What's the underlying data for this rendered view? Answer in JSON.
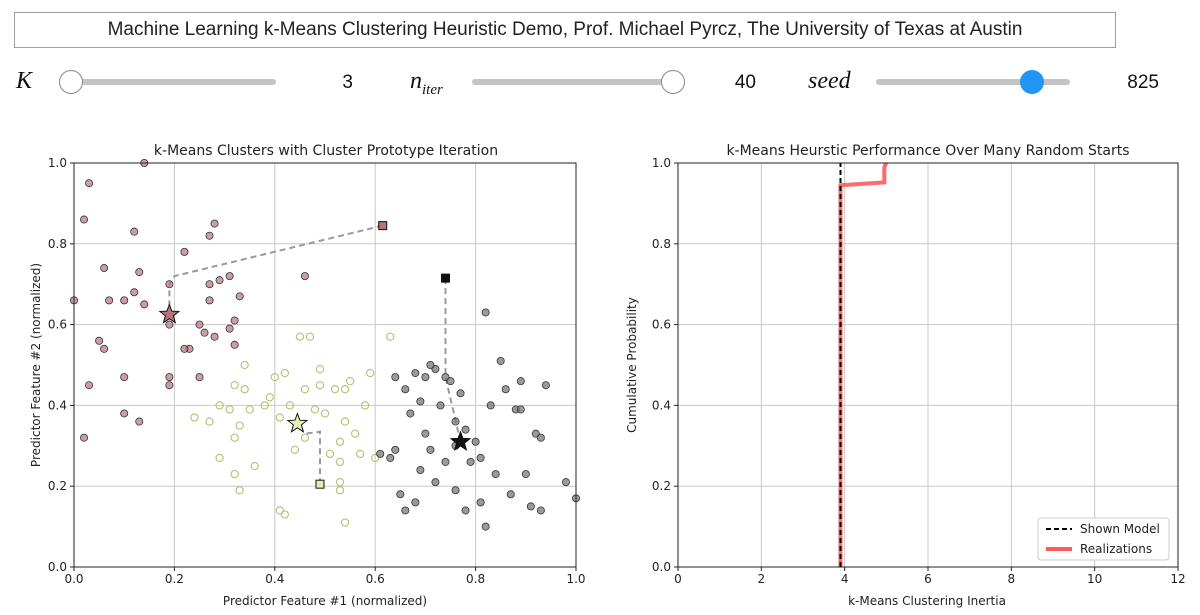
{
  "header": {
    "title": "Machine Learning k-Means Clustering Heuristic Demo, Prof. Michael Pyrcz, The University of Texas at Austin"
  },
  "sliders": [
    {
      "name": "K",
      "label_main": "K",
      "label_sub": "",
      "value": "3",
      "fraction": 0.0,
      "style": "light"
    },
    {
      "name": "n_iter",
      "label_main": "n",
      "label_sub": "iter",
      "value": "40",
      "fraction": 1.0,
      "style": "light"
    },
    {
      "name": "seed",
      "label_main": "seed",
      "label_sub": "",
      "value": "825",
      "fraction": 0.8,
      "style": "active"
    }
  ],
  "colors": {
    "cluster_red": "#b5737e",
    "cluster_yellow": "#e8ecb0",
    "cluster_gray": "#6f6f6f",
    "trace": "#999999",
    "realizations": "#ff5a5a",
    "shown_model": "#000000",
    "grid": "#c8c8c8"
  },
  "chart_data": [
    {
      "type": "scatter",
      "title": "k-Means Clusters with Cluster Prototype Iteration",
      "xlabel": "Predictor Feature #1 (normalized)",
      "ylabel": "Predictor Feature #2 (normalized)",
      "xlim": [
        0,
        1
      ],
      "ylim": [
        0,
        1
      ],
      "xticks": [
        "0.0",
        "0.2",
        "0.4",
        "0.6",
        "0.8",
        "1.0"
      ],
      "yticks": [
        "0.0",
        "0.2",
        "0.4",
        "0.6",
        "0.8",
        "1.0"
      ],
      "grid": true,
      "series": [
        {
          "cluster": 1,
          "color": "#b5737e",
          "filled": true,
          "points": [
            [
              0.0,
              0.66
            ],
            [
              0.02,
              0.86
            ],
            [
              0.03,
              0.95
            ],
            [
              0.06,
              0.74
            ],
            [
              0.07,
              0.66
            ],
            [
              0.06,
              0.54
            ],
            [
              0.05,
              0.56
            ],
            [
              0.03,
              0.45
            ],
            [
              0.02,
              0.32
            ],
            [
              0.1,
              0.66
            ],
            [
              0.12,
              0.83
            ],
            [
              0.12,
              0.68
            ],
            [
              0.13,
              0.73
            ],
            [
              0.14,
              0.65
            ],
            [
              0.1,
              0.47
            ],
            [
              0.1,
              0.38
            ],
            [
              0.13,
              0.36
            ],
            [
              0.19,
              0.45
            ],
            [
              0.19,
              0.47
            ],
            [
              0.19,
              0.6
            ],
            [
              0.19,
              0.7
            ],
            [
              0.22,
              0.78
            ],
            [
              0.23,
              0.54
            ],
            [
              0.22,
              0.54
            ],
            [
              0.25,
              0.6
            ],
            [
              0.26,
              0.58
            ],
            [
              0.27,
              0.66
            ],
            [
              0.27,
              0.7
            ],
            [
              0.27,
              0.82
            ],
            [
              0.28,
              0.85
            ],
            [
              0.29,
              0.71
            ],
            [
              0.31,
              0.72
            ],
            [
              0.32,
              0.61
            ],
            [
              0.31,
              0.59
            ],
            [
              0.33,
              0.67
            ],
            [
              0.32,
              0.55
            ],
            [
              0.28,
              0.57
            ],
            [
              0.46,
              0.72
            ],
            [
              0.25,
              0.47
            ],
            [
              0.14,
              1.0
            ]
          ]
        },
        {
          "cluster": 2,
          "color": "#e8ecb0",
          "filled": false,
          "points": [
            [
              0.24,
              0.37
            ],
            [
              0.27,
              0.36
            ],
            [
              0.29,
              0.4
            ],
            [
              0.29,
              0.27
            ],
            [
              0.31,
              0.39
            ],
            [
              0.32,
              0.32
            ],
            [
              0.32,
              0.23
            ],
            [
              0.33,
              0.35
            ],
            [
              0.33,
              0.19
            ],
            [
              0.34,
              0.44
            ],
            [
              0.34,
              0.5
            ],
            [
              0.35,
              0.39
            ],
            [
              0.36,
              0.25
            ],
            [
              0.38,
              0.4
            ],
            [
              0.39,
              0.42
            ],
            [
              0.4,
              0.47
            ],
            [
              0.41,
              0.37
            ],
            [
              0.41,
              0.14
            ],
            [
              0.42,
              0.13
            ],
            [
              0.42,
              0.48
            ],
            [
              0.43,
              0.4
            ],
            [
              0.44,
              0.29
            ],
            [
              0.45,
              0.57
            ],
            [
              0.46,
              0.32
            ],
            [
              0.46,
              0.44
            ],
            [
              0.47,
              0.57
            ],
            [
              0.48,
              0.39
            ],
            [
              0.49,
              0.45
            ],
            [
              0.49,
              0.49
            ],
            [
              0.5,
              0.38
            ],
            [
              0.51,
              0.28
            ],
            [
              0.52,
              0.44
            ],
            [
              0.53,
              0.31
            ],
            [
              0.53,
              0.26
            ],
            [
              0.53,
              0.21
            ],
            [
              0.53,
              0.19
            ],
            [
              0.54,
              0.44
            ],
            [
              0.54,
              0.36
            ],
            [
              0.54,
              0.11
            ],
            [
              0.55,
              0.46
            ],
            [
              0.56,
              0.33
            ],
            [
              0.57,
              0.28
            ],
            [
              0.58,
              0.4
            ],
            [
              0.59,
              0.48
            ],
            [
              0.6,
              0.27
            ],
            [
              0.63,
              0.57
            ],
            [
              0.32,
              0.45
            ]
          ]
        },
        {
          "cluster": 3,
          "color": "#6f6f6f",
          "filled": true,
          "points": [
            [
              0.61,
              0.28
            ],
            [
              0.63,
              0.27
            ],
            [
              0.64,
              0.47
            ],
            [
              0.64,
              0.29
            ],
            [
              0.65,
              0.18
            ],
            [
              0.66,
              0.44
            ],
            [
              0.66,
              0.14
            ],
            [
              0.67,
              0.38
            ],
            [
              0.68,
              0.16
            ],
            [
              0.68,
              0.48
            ],
            [
              0.69,
              0.24
            ],
            [
              0.69,
              0.41
            ],
            [
              0.7,
              0.47
            ],
            [
              0.7,
              0.33
            ],
            [
              0.71,
              0.29
            ],
            [
              0.72,
              0.49
            ],
            [
              0.72,
              0.21
            ],
            [
              0.73,
              0.4
            ],
            [
              0.74,
              0.47
            ],
            [
              0.74,
              0.26
            ],
            [
              0.75,
              0.46
            ],
            [
              0.76,
              0.19
            ],
            [
              0.76,
              0.36
            ],
            [
              0.77,
              0.43
            ],
            [
              0.78,
              0.34
            ],
            [
              0.78,
              0.14
            ],
            [
              0.79,
              0.26
            ],
            [
              0.8,
              0.31
            ],
            [
              0.81,
              0.27
            ],
            [
              0.81,
              0.16
            ],
            [
              0.82,
              0.1
            ],
            [
              0.82,
              0.63
            ],
            [
              0.83,
              0.4
            ],
            [
              0.84,
              0.23
            ],
            [
              0.85,
              0.51
            ],
            [
              0.86,
              0.44
            ],
            [
              0.87,
              0.18
            ],
            [
              0.88,
              0.39
            ],
            [
              0.89,
              0.46
            ],
            [
              0.89,
              0.39
            ],
            [
              0.9,
              0.23
            ],
            [
              0.91,
              0.15
            ],
            [
              0.92,
              0.33
            ],
            [
              0.93,
              0.32
            ],
            [
              0.93,
              0.14
            ],
            [
              0.94,
              0.45
            ],
            [
              0.98,
              0.21
            ],
            [
              1.0,
              0.17
            ],
            [
              0.76,
              0.3
            ],
            [
              0.71,
              0.5
            ]
          ]
        }
      ],
      "prototype_traces": [
        {
          "cluster": 1,
          "color": "#b5737e",
          "path": [
            [
              0.615,
              0.845
            ],
            [
              0.2,
              0.72
            ],
            [
              0.19,
              0.7
            ],
            [
              0.19,
              0.625
            ]
          ],
          "start": [
            0.615,
            0.845
          ],
          "final": [
            0.19,
            0.625
          ]
        },
        {
          "cluster": 2,
          "color": "#e8ecb0",
          "path": [
            [
              0.49,
              0.205
            ],
            [
              0.49,
              0.335
            ],
            [
              0.46,
              0.33
            ],
            [
              0.445,
              0.355
            ]
          ],
          "start": [
            0.49,
            0.205
          ],
          "final": [
            0.445,
            0.355
          ]
        },
        {
          "cluster": 3,
          "color": "#111111",
          "path": [
            [
              0.74,
              0.715
            ],
            [
              0.74,
              0.47
            ],
            [
              0.77,
              0.31
            ]
          ],
          "start": [
            0.74,
            0.715
          ],
          "final": [
            0.77,
            0.31
          ]
        }
      ]
    },
    {
      "type": "line",
      "title": "k-Means Heurstic Performance Over Many Random Starts",
      "xlabel": "k-Means Clustering Inertia",
      "ylabel": "Cumulative Probability",
      "xlim": [
        0,
        12
      ],
      "ylim": [
        0,
        1
      ],
      "xticks": [
        "0",
        "2",
        "4",
        "6",
        "8",
        "10",
        "12"
      ],
      "yticks": [
        "0.0",
        "0.2",
        "0.4",
        "0.6",
        "0.8",
        "1.0"
      ],
      "grid": true,
      "legend_position": "bottom-right",
      "series": [
        {
          "name": "Shown Model",
          "style": "dashed",
          "color": "#000000",
          "x": [
            3.9,
            3.9
          ],
          "y": [
            0.0,
            1.0
          ]
        },
        {
          "name": "Realizations",
          "style": "solid",
          "color": "#ff5a5a",
          "x": [
            3.9,
            3.9,
            4.95,
            4.95,
            5.0
          ],
          "y": [
            0.0,
            0.945,
            0.952,
            0.99,
            1.0
          ]
        }
      ]
    }
  ]
}
